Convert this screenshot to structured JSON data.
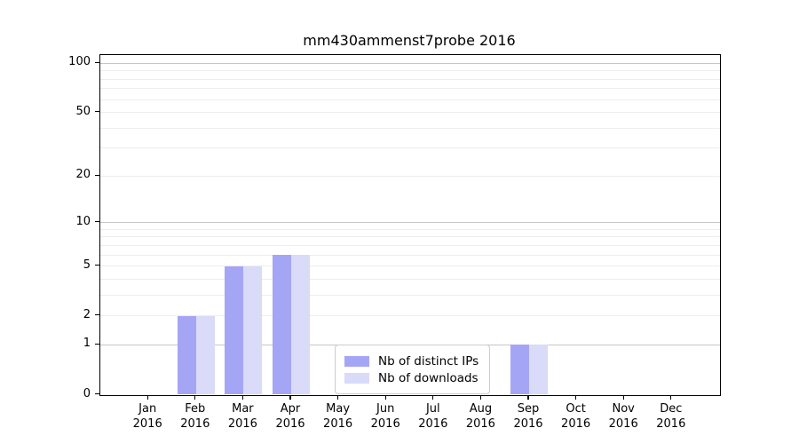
{
  "title": "mm430ammenst7probe 2016",
  "chart_data": {
    "type": "bar",
    "title": "mm430ammenst7probe 2016",
    "categories": [
      "Jan",
      "Feb",
      "Mar",
      "Apr",
      "May",
      "Jun",
      "Jul",
      "Aug",
      "Sep",
      "Oct",
      "Nov",
      "Dec"
    ],
    "category_year": "2016",
    "series": [
      {
        "name": "Nb of distinct IPs",
        "color": "#a5a5f6",
        "values": [
          0,
          2,
          5,
          6,
          0,
          0,
          0,
          0,
          1,
          0,
          0,
          0
        ]
      },
      {
        "name": "Nb of downloads",
        "color": "#dadaf9",
        "values": [
          0,
          2,
          5,
          6,
          0,
          0,
          0,
          0,
          1,
          0,
          0,
          0
        ]
      }
    ],
    "xlabel": "",
    "ylabel": "",
    "yscale": "symlog-ln(1+v)",
    "ylim": [
      0,
      113
    ],
    "yticks": [
      100,
      50,
      20,
      10,
      5,
      2,
      1,
      0
    ],
    "major_gridlines": [
      1,
      10,
      100
    ],
    "minor_gridlines": [
      2,
      3,
      4,
      5,
      6,
      7,
      8,
      9,
      20,
      30,
      40,
      50,
      60,
      70,
      80,
      90
    ],
    "legend_position": "lower center",
    "grid": true
  },
  "colors": {
    "major_grid": "#c6c6c6",
    "minor_grid": "#ededed",
    "axis": "#000000",
    "background": "#ffffff",
    "legend_border": "#cccccc"
  }
}
